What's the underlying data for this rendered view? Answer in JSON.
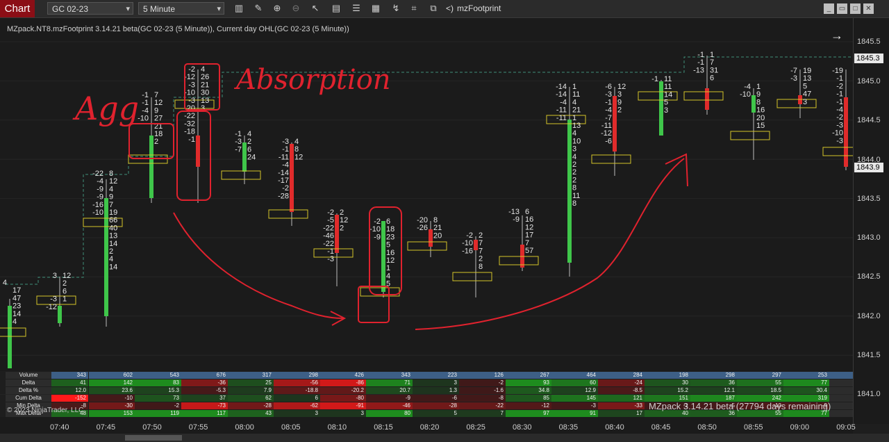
{
  "toolbar": {
    "chart_tab": "Chart",
    "instrument": "GC 02-23",
    "interval": "5 Minute",
    "indicator_label": "mzFootprint",
    "icons": [
      "bar-type-icon",
      "draw-tool-icon",
      "zoom-in-icon",
      "zoom-out-icon",
      "pointer-icon",
      "data-box-icon",
      "properties-icon",
      "strategies-icon",
      "templates-icon",
      "indicators-icon",
      "left-arrow-icon"
    ]
  },
  "window": {
    "minimize": "_",
    "restore": "▭",
    "maximize": "□",
    "close": "✕"
  },
  "chart": {
    "header": "MZpack.NT8.mzFootprint 3.14.21 beta(GC 02-23 (5 Minute)), Current day OHL(GC 02-23 (5 Minute))",
    "f_button": "F",
    "price_ticks": [
      "1845.5",
      "1845.0",
      "1844.5",
      "1844.0",
      "1843.5",
      "1843.0",
      "1842.5",
      "1842.0",
      "1841.5",
      "1841.0"
    ],
    "last_price_high": "1845.3",
    "last_price_current": "1843.9",
    "time_labels": [
      "07:40",
      "07:45",
      "07:50",
      "07:55",
      "08:00",
      "08:05",
      "08:10",
      "08:15",
      "08:20",
      "08:25",
      "08:30",
      "08:35",
      "08:40",
      "08:45",
      "08:50",
      "08:55",
      "09:00",
      "09:05"
    ],
    "annotations": [
      "Agg",
      "Absorption"
    ],
    "watermark": "MZpack 3.14.21 beta  (27794 days remaining)",
    "copyright": "© 2023 NinjaTrader, LLC",
    "colors": {
      "up": "#3fc64a",
      "down": "#e02b2b",
      "poc_box": "#d6c52a",
      "ohl_line": "#3f8f7a",
      "annot": "#e0222e"
    }
  },
  "candles": [
    {
      "time": "07:35",
      "dir": "up",
      "bid": [
        "4",
        "",
        "",
        "",
        ""
      ],
      "ask": [
        "",
        "17",
        "47",
        "23",
        "14",
        "4"
      ]
    },
    {
      "time": "07:40",
      "dir": "up",
      "bid": [
        "3",
        "",
        "",
        "-3",
        "-12"
      ],
      "ask": [
        "12",
        "2",
        "6",
        "1"
      ]
    },
    {
      "time": "07:45",
      "dir": "up",
      "bid": [
        "-22",
        "-4",
        "-9",
        "-9",
        "-16",
        "-10"
      ],
      "ask": [
        "8",
        "12",
        "4",
        "9",
        "7",
        "19",
        "66",
        "40",
        "13",
        "14",
        "2",
        "4",
        "14"
      ]
    },
    {
      "time": "07:50",
      "dir": "up",
      "bid": [
        "-1",
        "-1",
        "-4",
        "-10"
      ],
      "ask": [
        "7",
        "12",
        "9",
        "27",
        "21",
        "18",
        "2"
      ]
    },
    {
      "time": "07:55",
      "dir": "down",
      "bid": [
        "-2",
        "-12",
        "-3",
        "-10",
        "-3",
        "-20",
        "-22",
        "-32",
        "-18",
        "-1"
      ],
      "ask": [
        "4",
        "26",
        "21",
        "30",
        "13",
        "3"
      ]
    },
    {
      "time": "08:00",
      "dir": "up",
      "bid": [
        "-1",
        "-3",
        "-7"
      ],
      "ask": [
        "4",
        "2",
        "6",
        "24"
      ]
    },
    {
      "time": "08:05",
      "dir": "down",
      "bid": [
        "-3",
        "-1",
        "-11",
        "-4",
        "-14",
        "-17",
        "-2",
        "-28"
      ],
      "ask": [
        "4",
        "8",
        "12"
      ]
    },
    {
      "time": "08:10",
      "dir": "down",
      "bid": [
        "-2",
        "-5",
        "-22",
        "-46",
        "-22",
        "-1",
        "-3"
      ],
      "ask": [
        "2",
        "12",
        "2"
      ]
    },
    {
      "time": "08:15",
      "dir": "up",
      "bid": [
        "-2",
        "-10",
        "-9"
      ],
      "ask": [
        "6",
        "18",
        "23",
        "5",
        "16",
        "12",
        "1",
        "4",
        "5"
      ]
    },
    {
      "time": "08:20",
      "dir": "down",
      "bid": [
        "-20",
        "-26"
      ],
      "ask": [
        "8",
        "21",
        "20"
      ]
    },
    {
      "time": "08:25",
      "dir": "down",
      "bid": [
        "-2",
        "-10",
        "-16"
      ],
      "ask": [
        "2",
        "7",
        "7",
        "2",
        "8"
      ]
    },
    {
      "time": "08:30",
      "dir": "down",
      "bid": [
        "-13",
        "-9"
      ],
      "ask": [
        "6",
        "16",
        "12",
        "17",
        "7",
        "57"
      ]
    },
    {
      "time": "08:35",
      "dir": "up",
      "bid": [
        "-14",
        "-14",
        "-4",
        "-11",
        "-11"
      ],
      "ask": [
        "1",
        "11",
        "4",
        "21",
        "1",
        "13",
        "4",
        "10",
        "3",
        "4",
        "2",
        "2",
        "2",
        "8",
        "11",
        "8"
      ]
    },
    {
      "time": "08:40",
      "dir": "down",
      "bid": [
        "-6",
        "-3",
        "-1",
        "-4",
        "-7",
        "-11",
        "-12",
        "-6"
      ],
      "ask": [
        "12",
        "3",
        "9",
        "2"
      ]
    },
    {
      "time": "08:45",
      "dir": "up",
      "bid": [
        "-1"
      ],
      "ask": [
        "11",
        "11",
        "14",
        "5",
        "3"
      ]
    },
    {
      "time": "08:50",
      "dir": "down",
      "bid": [
        "-1",
        "-1",
        "-13"
      ],
      "ask": [
        "1",
        "7",
        "31",
        "6"
      ]
    },
    {
      "time": "08:55",
      "dir": "up",
      "bid": [
        "-4",
        "-10"
      ],
      "ask": [
        "1",
        "9",
        "8",
        "16",
        "20",
        "15"
      ]
    },
    {
      "time": "09:00",
      "dir": "down",
      "bid": [
        "-7",
        "-3"
      ],
      "ask": [
        "19",
        "13",
        "5",
        "47",
        "3"
      ]
    },
    {
      "time": "09:05",
      "dir": "down",
      "bid": [
        "-19",
        "-1",
        "-2",
        "-1",
        "-1",
        "-4",
        "-2",
        "-3",
        "-10",
        "-3"
      ],
      "ask": []
    }
  ],
  "stats": {
    "rows": [
      {
        "label": "Volume",
        "values": [
          "343",
          "602",
          "543",
          "676",
          "317",
          "298",
          "426",
          "343",
          "223",
          "126",
          "267",
          "464",
          "284",
          "198",
          "298",
          "297",
          "253",
          ""
        ]
      },
      {
        "label": "Delta",
        "values": [
          "41",
          "142",
          "83",
          "-36",
          "25",
          "-56",
          "-86",
          "71",
          "3",
          "-2",
          "93",
          "60",
          "-24",
          "30",
          "36",
          "55",
          "77",
          ""
        ]
      },
      {
        "label": "Delta %",
        "values": [
          "12.0",
          "23.6",
          "15.3",
          "-5.3",
          "7.9",
          "-18.8",
          "-20.2",
          "20.7",
          "1.3",
          "-1.6",
          "34.8",
          "12.9",
          "-8.5",
          "15.2",
          "12.1",
          "18.5",
          "30.4",
          ""
        ]
      },
      {
        "label": "Cum Delta",
        "values": [
          "-152",
          "-10",
          "73",
          "37",
          "62",
          "6",
          "-80",
          "-9",
          "-6",
          "-8",
          "85",
          "145",
          "121",
          "151",
          "187",
          "242",
          "319",
          ""
        ]
      },
      {
        "label": "Min Delta",
        "values": [
          "-8",
          "-30",
          "-2",
          "-73",
          "-28",
          "-62",
          "-91",
          "-46",
          "-28",
          "-22",
          "-12",
          "-3",
          "-33",
          "-1",
          "-5",
          "-10",
          "-9",
          ""
        ]
      },
      {
        "label": "Max Delta",
        "values": [
          "48",
          "153",
          "119",
          "117",
          "43",
          "3",
          "3",
          "80",
          "5",
          "7",
          "97",
          "91",
          "17",
          "40",
          "36",
          "55",
          "77",
          ""
        ]
      }
    ]
  }
}
